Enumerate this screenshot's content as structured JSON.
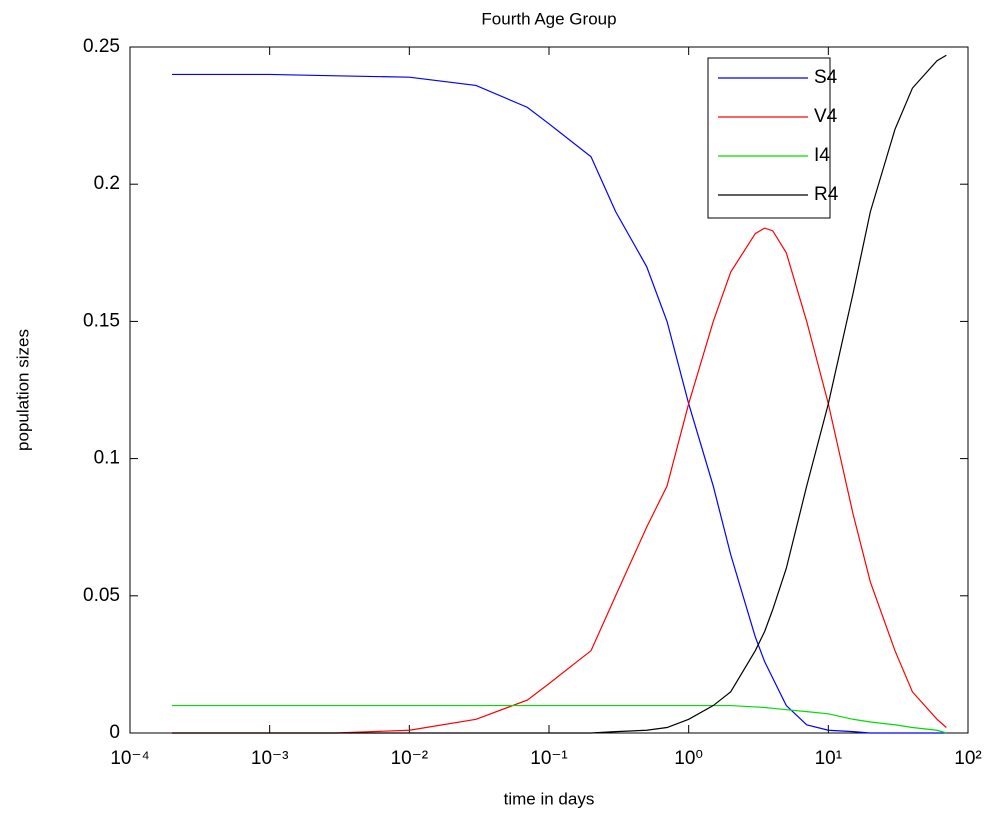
{
  "chart_data": {
    "type": "line",
    "title": "Fourth Age Group",
    "x_label": "time in days",
    "y_label": "population sizes",
    "x_scale": "log",
    "x": [
      0.0002,
      0.001,
      0.003,
      0.01,
      0.03,
      0.07,
      0.1,
      0.2,
      0.3,
      0.5,
      0.7,
      1,
      1.5,
      2,
      3,
      3.5,
      4,
      5,
      7,
      10,
      15,
      20,
      30,
      40,
      60,
      70
    ],
    "series": [
      {
        "name": "S4",
        "color": "#0000ff",
        "values": [
          0.24,
          0.24,
          0.2395,
          0.239,
          0.236,
          0.228,
          0.222,
          0.21,
          0.19,
          0.17,
          0.15,
          0.12,
          0.09,
          0.065,
          0.035,
          0.026,
          0.02,
          0.01,
          0.003,
          0.001,
          0.0005,
          0,
          0,
          0,
          0,
          0
        ]
      },
      {
        "name": "V4",
        "color": "#ff0000",
        "values": [
          0,
          0,
          0,
          0.001,
          0.005,
          0.012,
          0.018,
          0.03,
          0.05,
          0.075,
          0.09,
          0.12,
          0.15,
          0.168,
          0.182,
          0.184,
          0.183,
          0.175,
          0.15,
          0.12,
          0.08,
          0.055,
          0.03,
          0.015,
          0.005,
          0.002
        ]
      },
      {
        "name": "I4",
        "color": "#00dd00",
        "values": [
          0.01,
          0.01,
          0.01,
          0.01,
          0.01,
          0.01,
          0.01,
          0.01,
          0.01,
          0.01,
          0.01,
          0.01,
          0.01,
          0.01,
          0.0095,
          0.0093,
          0.009,
          0.0085,
          0.0078,
          0.007,
          0.005,
          0.004,
          0.003,
          0.002,
          0.001,
          0
        ]
      },
      {
        "name": "R4",
        "color": "#000000",
        "values": [
          0,
          0,
          0,
          0,
          0,
          0,
          0,
          0,
          0.0005,
          0.001,
          0.002,
          0.005,
          0.01,
          0.015,
          0.03,
          0.037,
          0.045,
          0.06,
          0.09,
          0.12,
          0.16,
          0.19,
          0.22,
          0.235,
          0.245,
          0.247
        ]
      }
    ],
    "xlim": [
      0.0001,
      100
    ],
    "xticks": [
      {
        "value": 0.0001,
        "label": "10⁻⁴"
      },
      {
        "value": 0.001,
        "label": "10⁻³"
      },
      {
        "value": 0.01,
        "label": "10⁻²"
      },
      {
        "value": 0.1,
        "label": "10⁻¹"
      },
      {
        "value": 1,
        "label": "10⁰"
      },
      {
        "value": 10,
        "label": "10¹"
      },
      {
        "value": 100,
        "label": "10²"
      }
    ],
    "ylim": [
      0,
      0.25
    ],
    "yticks": [
      0,
      0.05,
      0.1,
      0.15,
      0.2,
      0.25
    ],
    "legend": "northeast"
  }
}
